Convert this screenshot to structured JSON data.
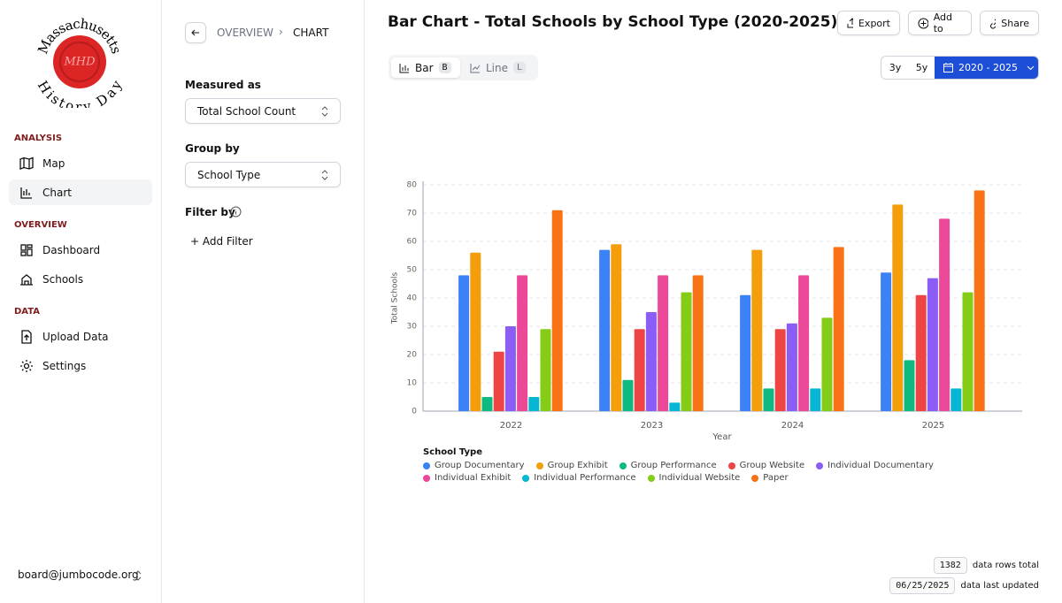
{
  "logo": {
    "top": "Massachusetts",
    "bottom": "History Day",
    "seal": "MHD"
  },
  "sidebar": {
    "sections": [
      {
        "title": "ANALYSIS",
        "items": [
          "Map",
          "Chart"
        ]
      },
      {
        "title": "OVERVIEW",
        "items": [
          "Dashboard",
          "Schools"
        ]
      },
      {
        "title": "DATA",
        "items": [
          "Upload Data",
          "Settings"
        ]
      }
    ],
    "user": "board@jumbocode.org"
  },
  "panel": {
    "breadcrumb": [
      "OVERVIEW",
      "CHART"
    ],
    "measured_label": "Measured as",
    "measured_value": "Total School Count",
    "group_label": "Group by",
    "group_value": "School Type",
    "filter_label": "Filter by",
    "add_filter": "+ Add Filter"
  },
  "header": {
    "buttons": [
      "Export",
      "Add to",
      "Share"
    ]
  },
  "toolbar": {
    "tabs": [
      {
        "label": "Bar",
        "key": "B"
      },
      {
        "label": "Line",
        "key": "L"
      }
    ],
    "ranges": [
      "3y",
      "5y"
    ],
    "date_range": "2020 - 2025"
  },
  "footer": {
    "rows_total": 1382,
    "rows_label": "data rows total",
    "updated": "06/25/2025",
    "updated_label": "data last updated"
  },
  "chart_data": {
    "type": "bar",
    "title": "Bar Chart - Total Schools by School Type (2020-2025)",
    "x_label": "Year",
    "y_label": "Total Schools",
    "legend_title": "School Type",
    "categories": [
      "2022",
      "2023",
      "2024",
      "2025"
    ],
    "series": [
      {
        "name": "Group Documentary",
        "color": "#3b82f6",
        "values": [
          48,
          57,
          41,
          49
        ]
      },
      {
        "name": "Group Exhibit",
        "color": "#f59e0b",
        "values": [
          56,
          59,
          57,
          73
        ]
      },
      {
        "name": "Group Performance",
        "color": "#10b981",
        "values": [
          5,
          11,
          8,
          18
        ]
      },
      {
        "name": "Group Website",
        "color": "#ef4444",
        "values": [
          21,
          29,
          29,
          41
        ]
      },
      {
        "name": "Individual Documentary",
        "color": "#8b5cf6",
        "values": [
          30,
          35,
          31,
          47
        ]
      },
      {
        "name": "Individual Exhibit",
        "color": "#ec4899",
        "values": [
          48,
          48,
          48,
          68
        ]
      },
      {
        "name": "Individual Performance",
        "color": "#06b6d4",
        "values": [
          5,
          3,
          8,
          8
        ]
      },
      {
        "name": "Individual Website",
        "color": "#84cc16",
        "values": [
          29,
          42,
          33,
          42
        ]
      },
      {
        "name": "Paper",
        "color": "#f97316",
        "values": [
          71,
          48,
          58,
          78
        ]
      }
    ],
    "ylim": [
      0,
      80
    ],
    "yticks": [
      0,
      10,
      20,
      30,
      40,
      50,
      60,
      70,
      80
    ],
    "grid": true
  }
}
